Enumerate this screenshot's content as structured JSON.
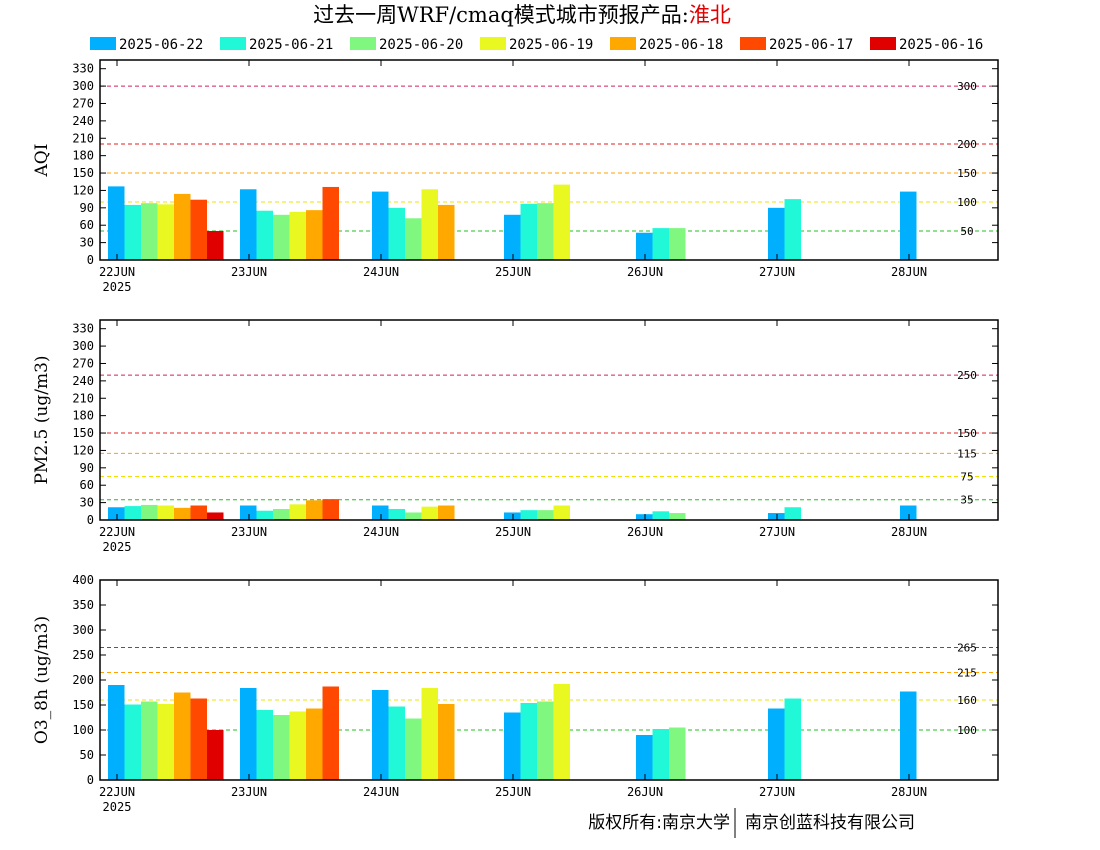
{
  "title": {
    "prefix": "过去一周WRF/cmaq模式城市预报产品:",
    "city": "淮北"
  },
  "colors": {
    "title_city": "#e00000",
    "series": [
      "#00b0ff",
      "#20f8d8",
      "#80f880",
      "#e8f820",
      "#ffa800",
      "#ff4800",
      "#e00000"
    ]
  },
  "copyright": {
    "left": "版权所有:南京大学",
    "right": "南京创蓝科技有限公司"
  },
  "chart_data": [
    {
      "type": "bar",
      "ylabel": "AQI",
      "ylim": [
        0,
        345
      ],
      "yticks": [
        0,
        30,
        60,
        90,
        120,
        150,
        180,
        210,
        240,
        270,
        300,
        330
      ],
      "categories": [
        "22JUN",
        "23JUN",
        "24JUN",
        "25JUN",
        "26JUN",
        "27JUN",
        "28JUN"
      ],
      "year_label": "2025",
      "thresholds": [
        {
          "value": 300,
          "label": "300",
          "color": "#d02060"
        },
        {
          "value": 200,
          "label": "200",
          "color": "#e02020"
        },
        {
          "value": 150,
          "label": "150",
          "color": "#ffa000"
        },
        {
          "value": 100,
          "label": "100",
          "color": "#f0e000"
        },
        {
          "value": 50,
          "label": "50",
          "color": "#20c020"
        }
      ],
      "series": [
        {
          "name": "2025-06-22",
          "values": [
            127,
            122,
            118,
            78,
            47,
            90,
            118
          ]
        },
        {
          "name": "2025-06-21",
          "values": [
            95,
            85,
            90,
            97,
            55,
            105,
            null
          ]
        },
        {
          "name": "2025-06-20",
          "values": [
            98,
            78,
            72,
            98,
            55,
            null,
            null
          ]
        },
        {
          "name": "2025-06-19",
          "values": [
            96,
            83,
            122,
            130,
            null,
            null,
            null
          ]
        },
        {
          "name": "2025-06-18",
          "values": [
            114,
            86,
            95,
            null,
            null,
            null,
            null
          ]
        },
        {
          "name": "2025-06-17",
          "values": [
            104,
            126,
            null,
            null,
            null,
            null,
            null
          ]
        },
        {
          "name": "2025-06-16",
          "values": [
            50,
            null,
            null,
            null,
            null,
            null,
            null
          ]
        }
      ]
    },
    {
      "type": "bar",
      "ylabel": "PM2.5 (ug/m3)",
      "ylim": [
        0,
        345
      ],
      "yticks": [
        0,
        30,
        60,
        90,
        120,
        150,
        180,
        210,
        240,
        270,
        300,
        330
      ],
      "categories": [
        "22JUN",
        "23JUN",
        "24JUN",
        "25JUN",
        "26JUN",
        "27JUN",
        "28JUN"
      ],
      "year_label": "2025",
      "thresholds": [
        {
          "value": 250,
          "label": "250",
          "color": "#d02060"
        },
        {
          "value": 150,
          "label": "150",
          "color": "#e02020"
        },
        {
          "value": 115,
          "label": "115",
          "color": "#ffa000"
        },
        {
          "value": 75,
          "label": "75",
          "color": "#f0e000"
        },
        {
          "value": 35,
          "label": "35",
          "color": "#20c020"
        }
      ],
      "series": [
        {
          "name": "2025-06-22",
          "values": [
            22,
            25,
            25,
            13,
            10,
            12,
            25
          ]
        },
        {
          "name": "2025-06-21",
          "values": [
            24,
            16,
            19,
            17,
            15,
            22,
            null
          ]
        },
        {
          "name": "2025-06-20",
          "values": [
            26,
            19,
            13,
            17,
            12,
            null,
            null
          ]
        },
        {
          "name": "2025-06-19",
          "values": [
            25,
            27,
            23,
            25,
            null,
            null,
            null
          ]
        },
        {
          "name": "2025-06-18",
          "values": [
            21,
            34,
            25,
            null,
            null,
            null,
            null
          ]
        },
        {
          "name": "2025-06-17",
          "values": [
            25,
            36,
            null,
            null,
            null,
            null,
            null
          ]
        },
        {
          "name": "2025-06-16",
          "values": [
            13,
            null,
            null,
            null,
            null,
            null,
            null
          ]
        }
      ]
    },
    {
      "type": "bar",
      "ylabel": "O3_8h (ug/m3)",
      "ylim": [
        0,
        400
      ],
      "yticks": [
        0,
        50,
        100,
        150,
        200,
        250,
        300,
        350,
        400
      ],
      "categories": [
        "22JUN",
        "23JUN",
        "24JUN",
        "25JUN",
        "26JUN",
        "27JUN",
        "28JUN"
      ],
      "year_label": "2025",
      "thresholds": [
        {
          "value": 265,
          "label": "265",
          "color": "#e02020"
        },
        {
          "value": 215,
          "label": "215",
          "color": "#ffa000"
        },
        {
          "value": 160,
          "label": "160",
          "color": "#f0e000"
        },
        {
          "value": 100,
          "label": "100",
          "color": "#20c020"
        }
      ],
      "series": [
        {
          "name": "2025-06-22",
          "values": [
            190,
            184,
            180,
            135,
            90,
            143,
            177
          ]
        },
        {
          "name": "2025-06-21",
          "values": [
            151,
            140,
            147,
            154,
            102,
            163,
            null
          ]
        },
        {
          "name": "2025-06-20",
          "values": [
            157,
            130,
            123,
            157,
            105,
            null,
            null
          ]
        },
        {
          "name": "2025-06-19",
          "values": [
            152,
            137,
            184,
            192,
            null,
            null,
            null
          ]
        },
        {
          "name": "2025-06-18",
          "values": [
            175,
            143,
            152,
            null,
            null,
            null,
            null
          ]
        },
        {
          "name": "2025-06-17",
          "values": [
            163,
            187,
            null,
            null,
            null,
            null,
            null
          ]
        },
        {
          "name": "2025-06-16",
          "values": [
            100,
            null,
            null,
            null,
            null,
            null,
            null
          ]
        }
      ]
    }
  ]
}
